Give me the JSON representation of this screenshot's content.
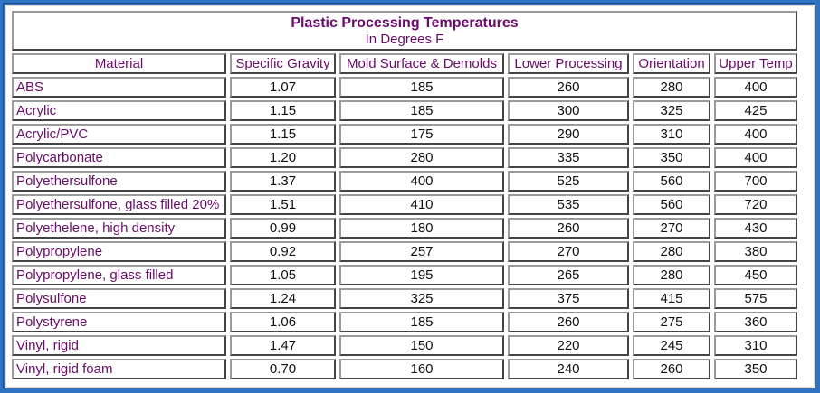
{
  "title": "Plastic Processing Temperatures",
  "subtitle": "In Degrees F",
  "columns": [
    "Material",
    "Specific Gravity",
    "Mold Surface & Demolds",
    "Lower Processing",
    "Orientation",
    "Upper Temp"
  ],
  "rows": [
    [
      "ABS",
      "1.07",
      "185",
      "260",
      "280",
      "400"
    ],
    [
      "Acrylic",
      "1.15",
      "185",
      "300",
      "325",
      "425"
    ],
    [
      "Acrylic/PVC",
      "1.15",
      "175",
      "290",
      "310",
      "400"
    ],
    [
      "Polycarbonate",
      "1.20",
      "280",
      "335",
      "350",
      "400"
    ],
    [
      "Polyethersulfone",
      "1.37",
      "400",
      "525",
      "560",
      "700"
    ],
    [
      "Polyethersulfone, glass filled 20%",
      "1.51",
      "410",
      "535",
      "560",
      "720"
    ],
    [
      "Polyethelene, high density",
      "0.99",
      "180",
      "260",
      "270",
      "430"
    ],
    [
      "Polypropylene",
      "0.92",
      "257",
      "270",
      "280",
      "380"
    ],
    [
      "Polypropylene, glass filled",
      "1.05",
      "195",
      "265",
      "280",
      "450"
    ],
    [
      "Polysulfone",
      "1.24",
      "325",
      "375",
      "415",
      "575"
    ],
    [
      "Polystyrene",
      "1.06",
      "185",
      "260",
      "275",
      "360"
    ],
    [
      "Vinyl, rigid",
      "1.47",
      "150",
      "220",
      "245",
      "310"
    ],
    [
      "Vinyl, rigid foam",
      "0.70",
      "160",
      "240",
      "260",
      "350"
    ]
  ],
  "colors": {
    "background": "#2f74c2",
    "header_text": "#6a0c6a",
    "value_text": "#111111"
  }
}
